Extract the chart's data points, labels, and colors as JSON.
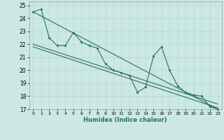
{
  "xlabel": "Humidex (Indice chaleur)",
  "background_color": "#cce8e4",
  "line_color": "#2a7068",
  "grid_color": "#b0d8d0",
  "xlim": [
    -0.5,
    23.5
  ],
  "ylim": [
    17,
    25.3
  ],
  "yticks": [
    17,
    18,
    19,
    20,
    21,
    22,
    23,
    24,
    25
  ],
  "xticks": [
    0,
    1,
    2,
    3,
    4,
    5,
    6,
    7,
    8,
    9,
    10,
    11,
    12,
    13,
    14,
    15,
    16,
    17,
    18,
    19,
    20,
    21,
    22,
    23
  ],
  "series1_x": [
    0,
    1,
    2,
    3,
    4,
    5,
    6,
    7,
    8,
    9,
    10,
    11,
    12,
    13,
    14,
    15,
    16,
    17,
    18,
    19,
    20,
    21,
    22,
    23
  ],
  "series1_y": [
    24.5,
    24.7,
    22.5,
    21.9,
    21.9,
    22.9,
    22.2,
    21.9,
    21.7,
    20.5,
    20.0,
    19.8,
    19.6,
    18.3,
    18.7,
    21.1,
    21.8,
    20.0,
    18.8,
    18.3,
    18.1,
    18.0,
    17.2,
    17.0
  ],
  "trend1_x": [
    0,
    23
  ],
  "trend1_y": [
    24.5,
    17.0
  ],
  "trend2_x": [
    0,
    23
  ],
  "trend2_y": [
    22.0,
    17.4
  ],
  "trend3_x": [
    0,
    23
  ],
  "trend3_y": [
    21.8,
    17.1
  ]
}
